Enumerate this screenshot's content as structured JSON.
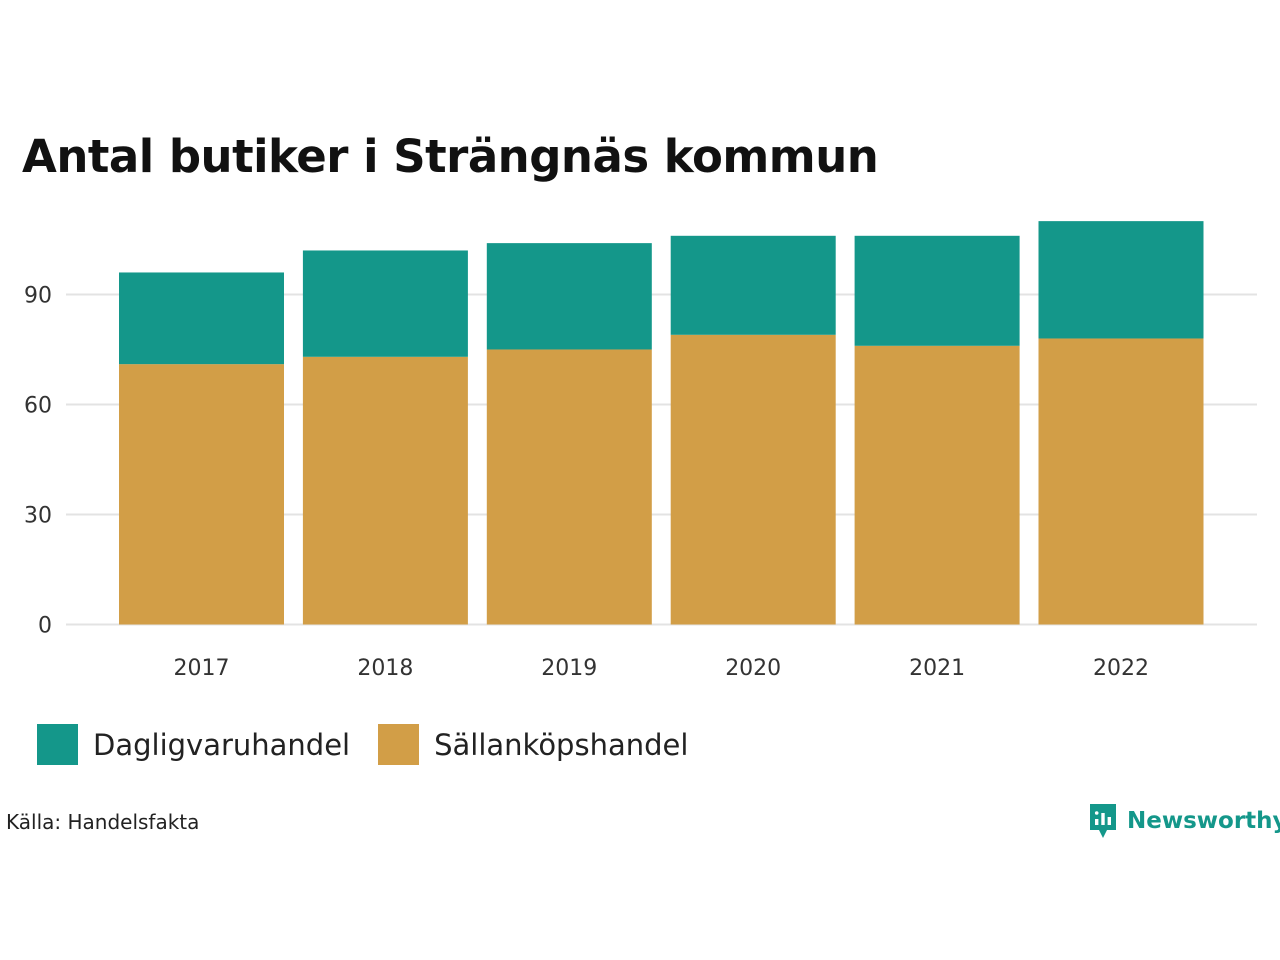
{
  "chart_data": {
    "type": "bar",
    "stacked": true,
    "title": "Antal butiker i Strängnäs kommun",
    "xlabel": "",
    "ylabel": "",
    "categories": [
      "2017",
      "2018",
      "2019",
      "2020",
      "2021",
      "2022"
    ],
    "series": [
      {
        "name": "Sällanköpshandel",
        "color": "#D29E47",
        "values": [
          71,
          73,
          75,
          79,
          76,
          78
        ]
      },
      {
        "name": "Dagligvaruhandel",
        "color": "#14978A",
        "values": [
          25,
          29,
          29,
          27,
          30,
          32
        ]
      }
    ],
    "ylim": [
      0,
      110
    ],
    "yticks": [
      0,
      30,
      60,
      90
    ],
    "grid": true,
    "legend_position": "bottom-left"
  },
  "legend": {
    "items": [
      {
        "label": "Dagligvaruhandel",
        "color": "#14978A"
      },
      {
        "label": "Sällanköpshandel",
        "color": "#D29E47"
      }
    ]
  },
  "source": "Källa: Handelsfakta",
  "brand": {
    "name": "Newsworthy",
    "color": "#14978A",
    "logo_icon": "newsworthy-logo-icon"
  }
}
